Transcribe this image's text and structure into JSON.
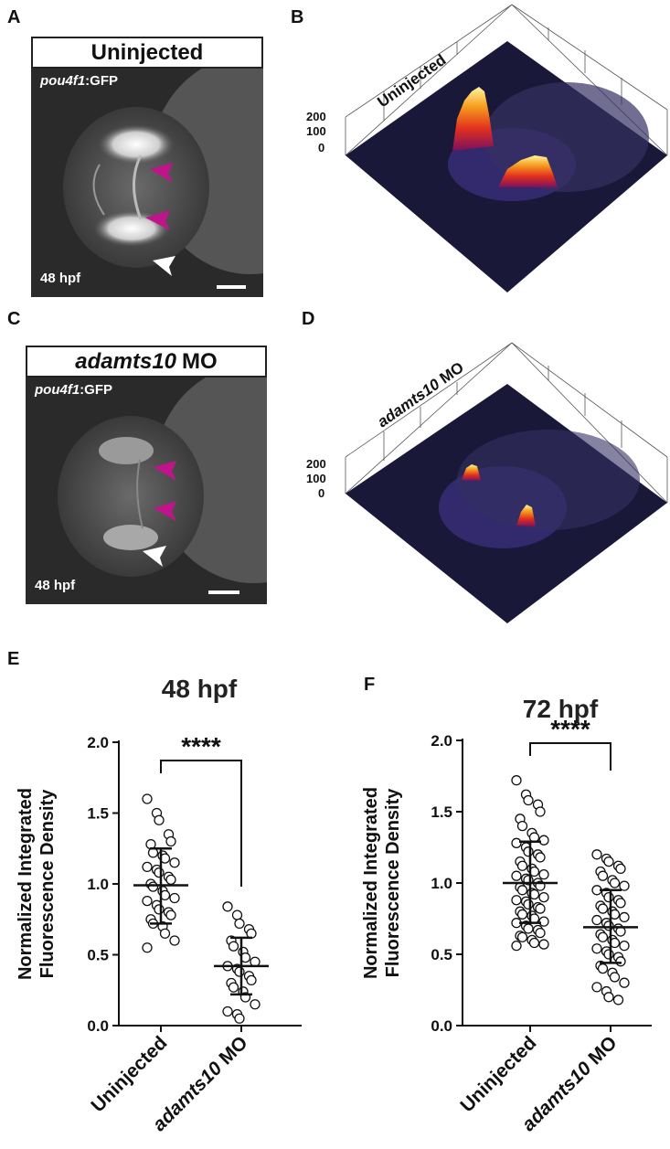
{
  "panels": {
    "A": {
      "letter": "A",
      "title": "Uninjected",
      "reporter_gene": "pou4f1",
      "reporter_suffix": ":GFP",
      "stage": "48 hpf"
    },
    "B": {
      "letter": "B",
      "label": "Uninjected",
      "z_ticks": [
        "200",
        "100",
        "0"
      ]
    },
    "C": {
      "letter": "C",
      "title_italic": "adamts10",
      "title_rest": "MO",
      "reporter_gene": "pou4f1",
      "reporter_suffix": ":GFP",
      "stage": "48 hpf"
    },
    "D": {
      "letter": "D",
      "label_italic": "adamts10",
      "label_rest": " MO",
      "z_ticks": [
        "200",
        "100",
        "0"
      ]
    }
  },
  "chart_data": [
    {
      "panel": "E",
      "type": "scatter",
      "title": "48 hpf",
      "ylabel_line1": "Normalized Integrated",
      "ylabel_line2": "Fluorescence Density",
      "ylim": [
        0.0,
        2.0
      ],
      "yticks": [
        "0.0",
        "0.5",
        "1.0",
        "1.5",
        "2.0"
      ],
      "categories": [
        "Uninjected",
        "adamts10 MO"
      ],
      "category_italic": [
        "",
        "adamts10"
      ],
      "category_rest": [
        "Uninjected",
        " MO"
      ],
      "significance": "****",
      "series": [
        {
          "name": "Uninjected",
          "mean": 0.99,
          "sd_low": 0.72,
          "sd_high": 1.25,
          "values": [
            1.6,
            1.5,
            1.45,
            1.35,
            1.3,
            1.28,
            1.22,
            1.2,
            1.18,
            1.15,
            1.12,
            1.1,
            1.08,
            1.05,
            1.03,
            1.0,
            0.98,
            0.95,
            0.92,
            0.9,
            0.88,
            0.85,
            0.82,
            0.8,
            0.78,
            0.75,
            0.72,
            0.7,
            0.65,
            0.6,
            0.55
          ]
        },
        {
          "name": "adamts10 MO",
          "mean": 0.42,
          "sd_low": 0.22,
          "sd_high": 0.62,
          "values": [
            0.84,
            0.78,
            0.72,
            0.68,
            0.65,
            0.6,
            0.56,
            0.52,
            0.48,
            0.45,
            0.42,
            0.4,
            0.38,
            0.35,
            0.32,
            0.3,
            0.27,
            0.24,
            0.2,
            0.15,
            0.1,
            0.08,
            0.05
          ]
        }
      ]
    },
    {
      "panel": "F",
      "type": "scatter",
      "title": "72 hpf",
      "ylabel_line1": "Normalized Integrated",
      "ylabel_line2": "Fluorescence Density",
      "ylim": [
        0.0,
        2.0
      ],
      "yticks": [
        "0.0",
        "0.5",
        "1.0",
        "1.5",
        "2.0"
      ],
      "categories": [
        "Uninjected",
        "adamts10 MO"
      ],
      "category_italic": [
        "",
        "adamts10"
      ],
      "category_rest": [
        "Uninjected",
        " MO"
      ],
      "significance": "****",
      "series": [
        {
          "name": "Uninjected",
          "mean": 1.0,
          "sd_low": 0.72,
          "sd_high": 1.29,
          "values": [
            1.72,
            1.62,
            1.58,
            1.55,
            1.5,
            1.45,
            1.4,
            1.35,
            1.32,
            1.3,
            1.28,
            1.25,
            1.22,
            1.2,
            1.18,
            1.15,
            1.12,
            1.1,
            1.08,
            1.06,
            1.05,
            1.03,
            1.02,
            1.0,
            0.98,
            0.97,
            0.95,
            0.93,
            0.92,
            0.9,
            0.88,
            0.87,
            0.85,
            0.83,
            0.82,
            0.8,
            0.78,
            0.77,
            0.75,
            0.73,
            0.72,
            0.7,
            0.68,
            0.67,
            0.65,
            0.63,
            0.62,
            0.6,
            0.58,
            0.57,
            0.56
          ]
        },
        {
          "name": "adamts10 MO",
          "mean": 0.69,
          "sd_low": 0.44,
          "sd_high": 0.95,
          "values": [
            1.2,
            1.17,
            1.15,
            1.12,
            1.1,
            1.08,
            1.05,
            1.02,
            1.0,
            0.98,
            0.95,
            0.93,
            0.9,
            0.88,
            0.86,
            0.84,
            0.82,
            0.8,
            0.78,
            0.76,
            0.74,
            0.72,
            0.7,
            0.68,
            0.66,
            0.64,
            0.62,
            0.6,
            0.58,
            0.56,
            0.54,
            0.52,
            0.5,
            0.48,
            0.45,
            0.42,
            0.4,
            0.37,
            0.34,
            0.3,
            0.27,
            0.24,
            0.2,
            0.18
          ]
        }
      ]
    }
  ]
}
